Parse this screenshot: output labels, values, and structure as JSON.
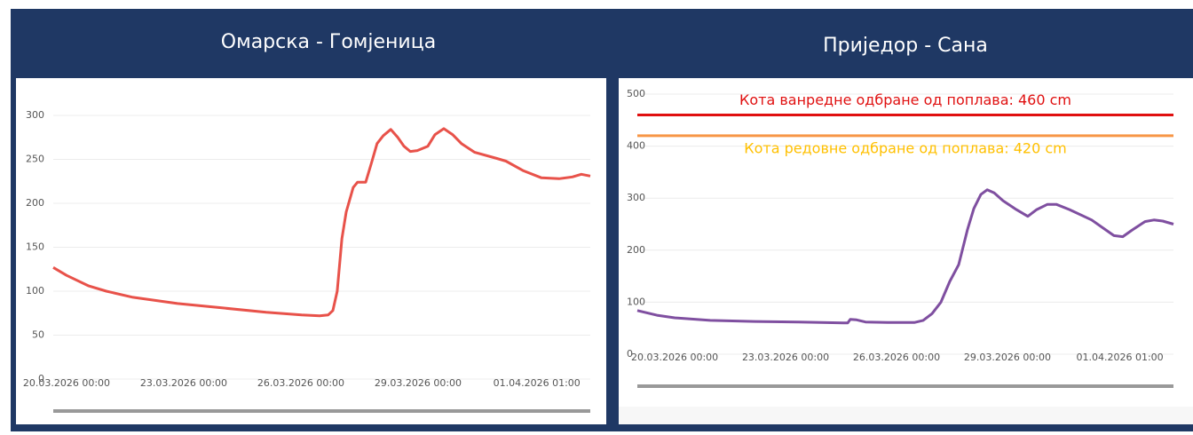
{
  "chart_data": [
    {
      "type": "line",
      "title": "Омарска - Гомјеница",
      "x": [
        -0.34,
        0,
        0.57,
        1.02,
        1.7,
        2.84,
        3.98,
        5.11,
        6.02,
        6.48,
        6.7,
        6.82,
        6.93,
        7.05,
        7.16,
        7.34,
        7.45,
        7.66,
        7.8,
        7.95,
        8.11,
        8.3,
        8.48,
        8.64,
        8.8,
        8.98,
        9.25,
        9.43,
        9.66,
        9.89,
        10.11,
        10.45,
        11.02,
        11.25,
        11.7,
        12.16,
        12.61,
        12.95,
        13.18,
        13.41
      ],
      "values": [
        127,
        118,
        106,
        100,
        93,
        86,
        81,
        76,
        73,
        72,
        73,
        78,
        100,
        160,
        190,
        218,
        224,
        224,
        245,
        268,
        277,
        284,
        275,
        265,
        259,
        260,
        265,
        278,
        285,
        278,
        268,
        258,
        251,
        248,
        237,
        229,
        228,
        230,
        233,
        231
      ],
      "color": "#e8524a",
      "xlim": [
        -0.34,
        13.41
      ],
      "xticks": [
        {
          "value": 0,
          "label": "20.03.2026 00:00"
        },
        {
          "value": 3,
          "label": "23.03.2026 00:00"
        },
        {
          "value": 6,
          "label": "26.03.2026 00:00"
        },
        {
          "value": 9,
          "label": "29.03.2026 00:00"
        },
        {
          "value": 12.04,
          "label": "01.04.2026 01:00"
        }
      ],
      "ylim": [
        0,
        300
      ],
      "yticks": [
        0,
        50,
        100,
        150,
        200,
        250,
        300
      ],
      "grid": true
    },
    {
      "type": "line",
      "title": "Приједор - Сана",
      "x": [
        -1.01,
        -0.48,
        0,
        0.96,
        2.16,
        3.36,
        4.56,
        4.68,
        4.75,
        4.92,
        5.16,
        5.76,
        6.48,
        6.72,
        6.96,
        7.2,
        7.44,
        7.68,
        7.92,
        8.09,
        8.28,
        8.45,
        8.64,
        8.88,
        9.24,
        9.55,
        9.79,
        10.08,
        10.32,
        10.68,
        11.28,
        11.64,
        11.88,
        12.12,
        12.36,
        12.72,
        12.96,
        13.2,
        13.49
      ],
      "values": [
        84,
        75,
        70,
        65,
        63,
        62,
        60,
        60,
        67,
        66,
        62,
        61,
        61,
        65,
        78,
        100,
        140,
        172,
        240,
        280,
        307,
        316,
        310,
        295,
        278,
        265,
        278,
        288,
        288,
        278,
        258,
        240,
        228,
        226,
        238,
        255,
        258,
        256,
        250
      ],
      "color": "#7f4fa0",
      "xlim": [
        -1.01,
        13.49
      ],
      "xticks": [
        {
          "value": 0,
          "label": "20.03.2026 00:00"
        },
        {
          "value": 3,
          "label": "23.03.2026 00:00"
        },
        {
          "value": 6,
          "label": "26.03.2026 00:00"
        },
        {
          "value": 9,
          "label": "29.03.2026 00:00"
        },
        {
          "value": 12.04,
          "label": "01.04.2026 01:00"
        }
      ],
      "ylim": [
        0,
        500
      ],
      "yticks": [
        0,
        100,
        200,
        300,
        400,
        500
      ],
      "grid": true,
      "thresholds": [
        {
          "label": "Кота ванредне одбране од поплава: 460 cm",
          "value": 460,
          "color": "#e01010",
          "label_color": "#e01010"
        },
        {
          "label": "Кота редовне одбране од поплава: 420 cm",
          "value": 420,
          "color": "#f79646",
          "label_color": "#ffc000"
        }
      ]
    }
  ]
}
